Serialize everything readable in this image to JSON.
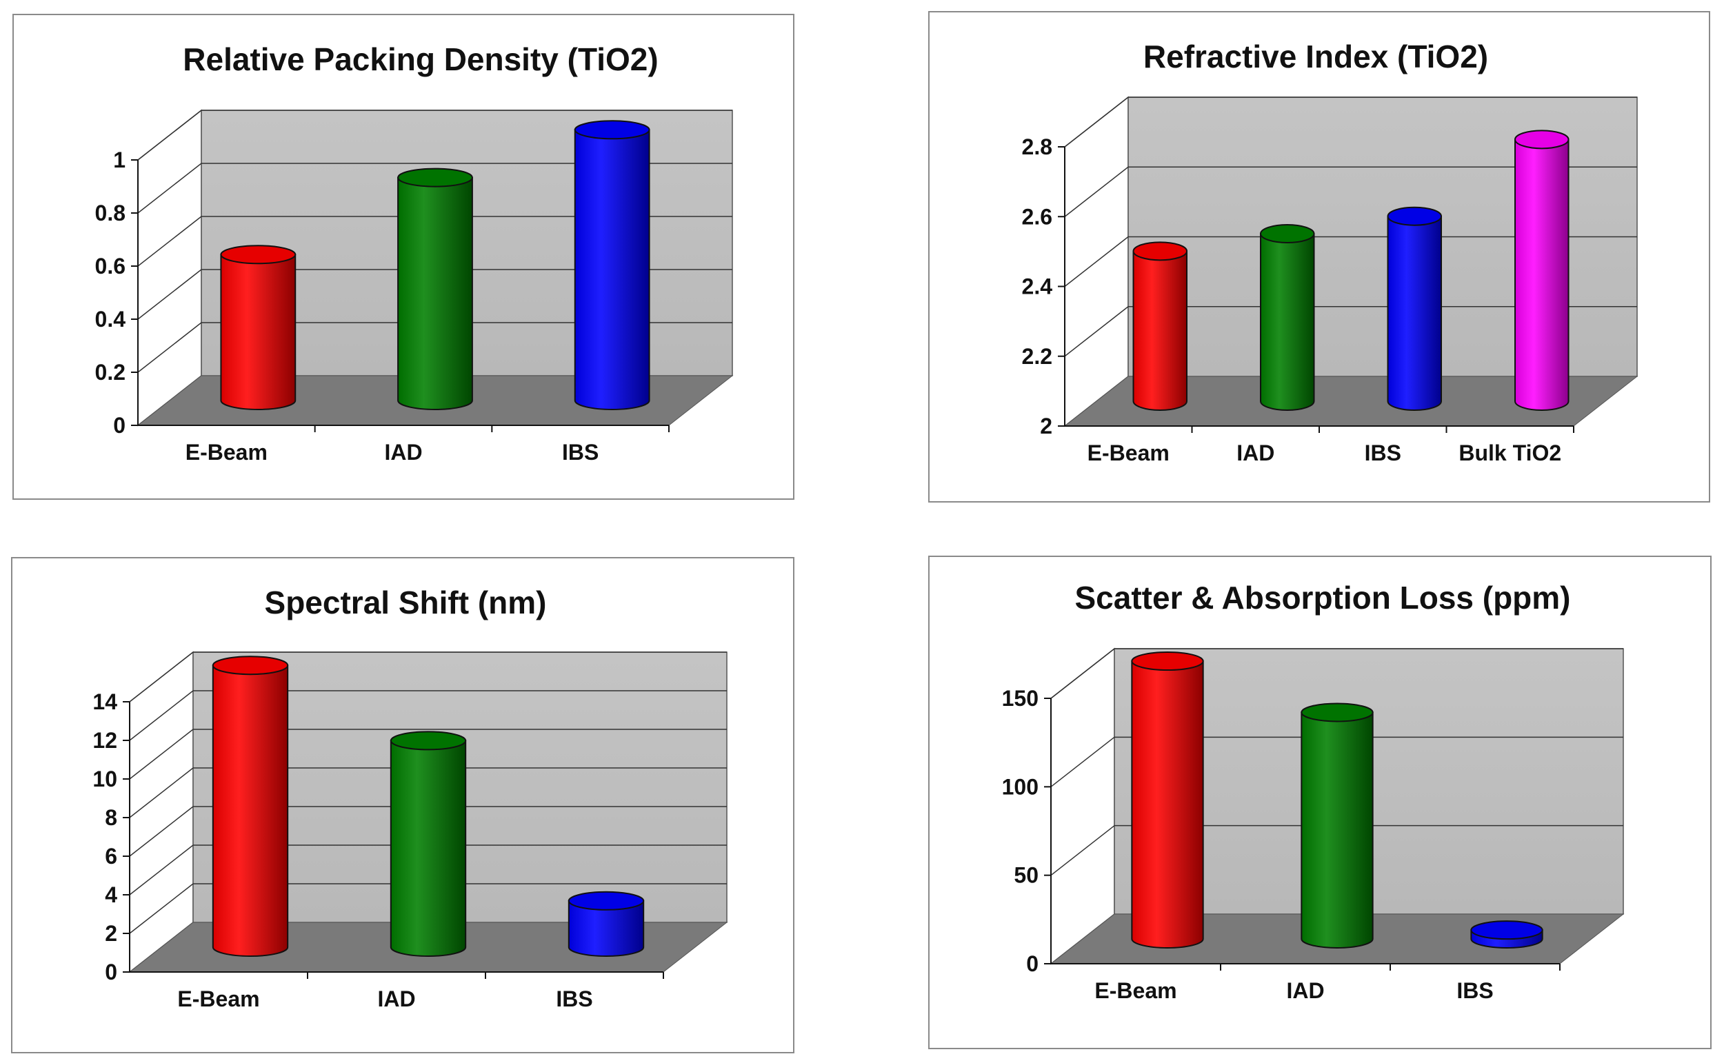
{
  "chart_data": [
    {
      "type": "bar",
      "title": "Relative Packing Density (TiO2)",
      "categories": [
        "E-Beam",
        "IAD",
        "IBS"
      ],
      "values": [
        0.55,
        0.84,
        1.02
      ],
      "ylim": [
        0,
        1
      ],
      "yticks": [
        "0",
        "0.2",
        "0.4",
        "0.6",
        "0.8",
        "1"
      ],
      "ytick_values": [
        0,
        0.2,
        0.4,
        0.6,
        0.8,
        1
      ],
      "colors": [
        "#ff0000",
        "#008000",
        "#0000ff"
      ],
      "grid": true,
      "xlabel": "",
      "ylabel": ""
    },
    {
      "type": "bar",
      "title": "Refractive Index (TiO2)",
      "categories": [
        "E-Beam",
        "IAD",
        "IBS",
        "Bulk TiO2"
      ],
      "values": [
        2.43,
        2.48,
        2.53,
        2.75
      ],
      "ylim": [
        2,
        2.8
      ],
      "yticks": [
        "2",
        "2.2",
        "2.4",
        "2.6",
        "2.8"
      ],
      "ytick_values": [
        2,
        2.2,
        2.4,
        2.6,
        2.8
      ],
      "colors": [
        "#ff0000",
        "#008000",
        "#0000ff",
        "#ff00ff"
      ],
      "grid": true,
      "xlabel": "",
      "ylabel": ""
    },
    {
      "type": "bar",
      "title": "Spectral Shift (nm)",
      "categories": [
        "E-Beam",
        "IAD",
        "IBS"
      ],
      "values": [
        14.6,
        10.7,
        2.4
      ],
      "ylim": [
        0,
        14
      ],
      "yticks": [
        "0",
        "2",
        "4",
        "6",
        "8",
        "10",
        "12",
        "14"
      ],
      "ytick_values": [
        0,
        2,
        4,
        6,
        8,
        10,
        12,
        14
      ],
      "colors": [
        "#ff0000",
        "#008000",
        "#0000ff"
      ],
      "grid": true,
      "xlabel": "",
      "ylabel": ""
    },
    {
      "type": "bar",
      "title": "Scatter & Absorption Loss (ppm)",
      "categories": [
        "E-Beam",
        "IAD",
        "IBS"
      ],
      "values": [
        157,
        128,
        5
      ],
      "ylim": [
        0,
        150
      ],
      "yticks": [
        "0",
        "50",
        "100",
        "150"
      ],
      "ytick_values": [
        0,
        50,
        100,
        150
      ],
      "colors": [
        "#ff0000",
        "#008000",
        "#0000ff"
      ],
      "grid": true,
      "xlabel": "",
      "ylabel": ""
    }
  ]
}
